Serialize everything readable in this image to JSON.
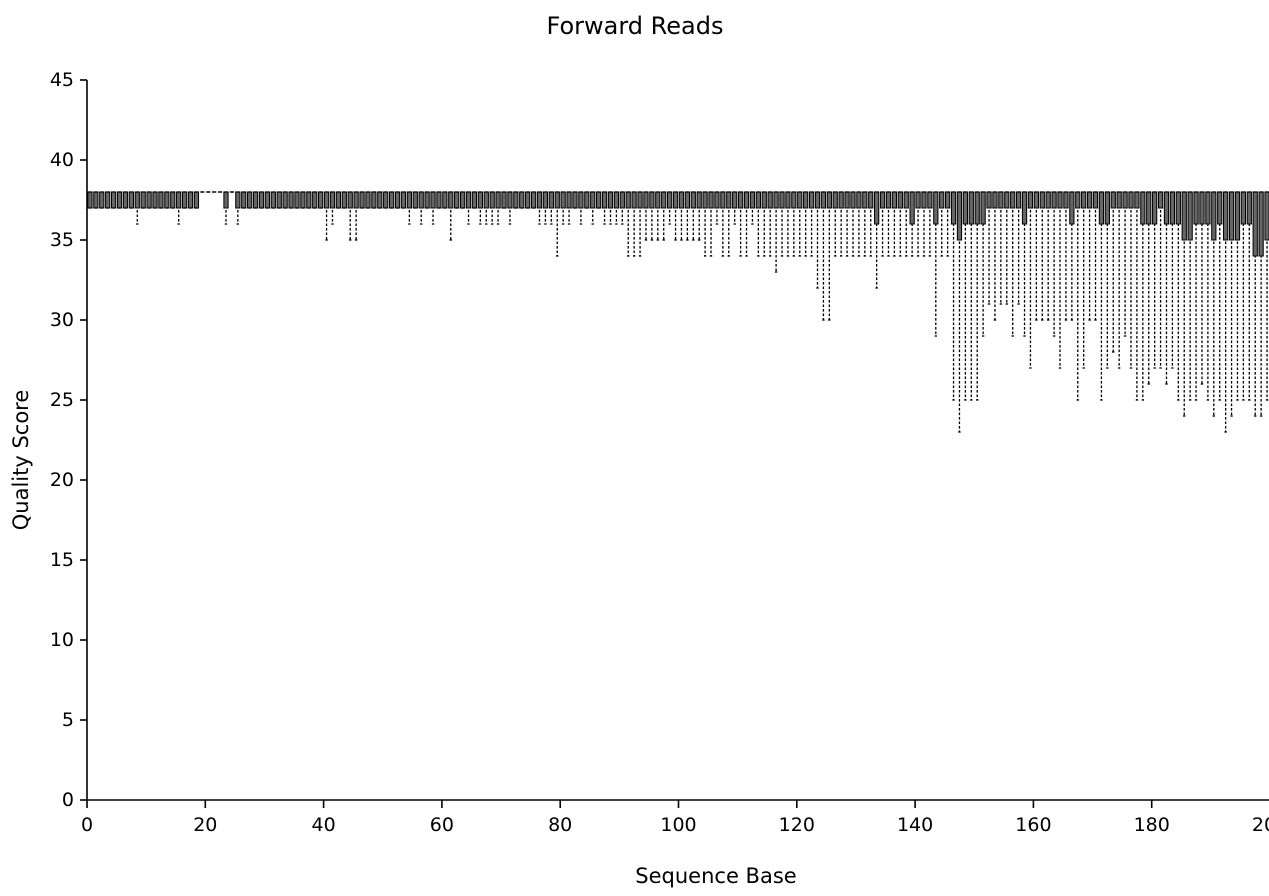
{
  "chart_data": {
    "type": "box",
    "title": "Forward Reads",
    "xlabel": "Sequence Base",
    "ylabel": "Quality Score",
    "xlim": [
      0,
      200
    ],
    "ylim": [
      0,
      45
    ],
    "x_ticks": [
      "0",
      "20",
      "40",
      "60",
      "80",
      "100",
      "120",
      "140",
      "160",
      "180",
      "200"
    ],
    "y_ticks": [
      "0",
      "5",
      "10",
      "15",
      "20",
      "25",
      "30",
      "35",
      "40",
      "45"
    ],
    "grid": false,
    "legend": "none",
    "series": [
      {
        "x": [
          1,
          2,
          3,
          4,
          5,
          6,
          7,
          8,
          9,
          10,
          11,
          12,
          13,
          14,
          15,
          16,
          17,
          18,
          19,
          20,
          21,
          22,
          23,
          24,
          25,
          26,
          27,
          28,
          29,
          30,
          31,
          32,
          33,
          34,
          35,
          36,
          37,
          38,
          39,
          40,
          41,
          42,
          43,
          44,
          45,
          46,
          47,
          48,
          49,
          50,
          51,
          52,
          53,
          54,
          55,
          56,
          57,
          58,
          59,
          60,
          61,
          62,
          63,
          64,
          65,
          66,
          67,
          68,
          69,
          70,
          71,
          72,
          73,
          74,
          75,
          76,
          77,
          78,
          79,
          80,
          81,
          82,
          83,
          84,
          85,
          86,
          87,
          88,
          89,
          90,
          91,
          92,
          93,
          94,
          95,
          96,
          97,
          98,
          99,
          100,
          101,
          102,
          103,
          104,
          105,
          106,
          107,
          108,
          109,
          110,
          111,
          112,
          113,
          114,
          115,
          116,
          117,
          118,
          119,
          120,
          121,
          122,
          123,
          124,
          125,
          126,
          127,
          128,
          129,
          130,
          131,
          132,
          133,
          134,
          135,
          136,
          137,
          138,
          139,
          140,
          141,
          142,
          143,
          144,
          145,
          146,
          147,
          148,
          149,
          150,
          151,
          152,
          153,
          154,
          155,
          156,
          157,
          158,
          159,
          160,
          161,
          162,
          163,
          164,
          165,
          166,
          167,
          168,
          169,
          170,
          171,
          172,
          173,
          174,
          175,
          176,
          177,
          178,
          179,
          180,
          181,
          182,
          183,
          184,
          185,
          186,
          187,
          188,
          189,
          190,
          191,
          192,
          193,
          194,
          195,
          196,
          197,
          198,
          199,
          200
        ],
        "min": [
          37,
          37,
          37,
          37,
          37,
          37,
          37,
          37,
          36,
          37,
          37,
          37,
          37,
          37,
          37,
          36,
          37,
          37,
          37,
          38,
          38,
          38,
          38,
          36,
          38,
          36,
          37,
          37,
          37,
          37,
          37,
          37,
          37,
          37,
          37,
          37,
          37,
          37,
          37,
          37,
          35,
          36,
          37,
          37,
          35,
          35,
          37,
          37,
          37,
          37,
          37,
          37,
          37,
          37,
          36,
          37,
          36,
          37,
          36,
          37,
          37,
          35,
          37,
          37,
          36,
          37,
          36,
          36,
          36,
          36,
          37,
          36,
          37,
          37,
          37,
          37,
          36,
          36,
          36,
          34,
          36,
          36,
          37,
          36,
          37,
          36,
          37,
          36,
          36,
          36,
          36,
          34,
          34,
          34,
          35,
          35,
          35,
          35,
          36,
          35,
          35,
          35,
          35,
          35,
          34,
          34,
          36,
          34,
          34,
          36,
          34,
          34,
          36,
          34,
          34,
          34,
          33,
          34,
          34,
          34,
          34,
          34,
          34,
          32,
          30,
          30,
          34,
          34,
          34,
          34,
          34,
          34,
          34,
          32,
          34,
          34,
          34,
          34,
          34,
          34,
          34,
          34,
          34,
          29,
          34,
          34,
          25,
          23,
          25,
          25,
          25,
          29,
          31,
          30,
          31,
          31,
          29,
          31,
          29,
          27,
          30,
          30,
          30,
          29,
          27,
          30,
          30,
          25,
          27,
          30,
          30,
          25,
          27,
          28,
          27,
          29,
          27,
          25,
          25,
          26,
          27,
          27,
          26,
          27,
          25,
          24,
          25,
          25,
          26,
          25,
          24,
          25,
          23,
          24,
          25,
          25,
          25,
          24,
          24,
          25
        ],
        "q1": [
          37,
          37,
          37,
          37,
          37,
          37,
          37,
          37,
          37,
          37,
          37,
          37,
          37,
          37,
          37,
          37,
          37,
          37,
          37,
          38,
          38,
          38,
          38,
          37,
          38,
          37,
          37,
          37,
          37,
          37,
          37,
          37,
          37,
          37,
          37,
          37,
          37,
          37,
          37,
          37,
          37,
          37,
          37,
          37,
          37,
          37,
          37,
          37,
          37,
          37,
          37,
          37,
          37,
          37,
          37,
          37,
          37,
          37,
          37,
          37,
          37,
          37,
          37,
          37,
          37,
          37,
          37,
          37,
          37,
          37,
          37,
          37,
          37,
          37,
          37,
          37,
          37,
          37,
          37,
          37,
          37,
          37,
          37,
          37,
          37,
          37,
          37,
          37,
          37,
          37,
          37,
          37,
          37,
          37,
          37,
          37,
          37,
          37,
          37,
          37,
          37,
          37,
          37,
          37,
          37,
          37,
          37,
          37,
          37,
          37,
          37,
          37,
          37,
          37,
          37,
          37,
          37,
          37,
          37,
          37,
          37,
          37,
          37,
          37,
          37,
          37,
          37,
          37,
          37,
          37,
          37,
          37,
          37,
          36,
          37,
          37,
          37,
          37,
          37,
          36,
          37,
          37,
          37,
          36,
          37,
          37,
          36,
          35,
          36,
          36,
          36,
          36,
          37,
          37,
          37,
          37,
          37,
          37,
          36,
          37,
          37,
          37,
          37,
          37,
          37,
          37,
          36,
          37,
          37,
          37,
          37,
          36,
          36,
          37,
          37,
          37,
          37,
          37,
          36,
          36,
          36,
          37,
          36,
          36,
          36,
          35,
          35,
          36,
          36,
          36,
          35,
          36,
          35,
          35,
          35,
          36,
          36,
          34,
          34,
          35
        ],
        "median": [
          38,
          38,
          38,
          38,
          38,
          38,
          38,
          38,
          38,
          38,
          38,
          38,
          38,
          38,
          38,
          38,
          38,
          38,
          38,
          38,
          38,
          38,
          38,
          38,
          38,
          38,
          38,
          38,
          38,
          38,
          38,
          38,
          38,
          38,
          38,
          38,
          38,
          38,
          38,
          38,
          38,
          38,
          38,
          38,
          38,
          38,
          38,
          38,
          38,
          38,
          38,
          38,
          38,
          38,
          38,
          38,
          38,
          38,
          38,
          38,
          38,
          38,
          38,
          38,
          38,
          38,
          38,
          38,
          38,
          38,
          38,
          38,
          38,
          38,
          38,
          38,
          38,
          38,
          38,
          38,
          38,
          38,
          38,
          38,
          38,
          38,
          38,
          38,
          38,
          38,
          38,
          38,
          38,
          38,
          38,
          38,
          38,
          38,
          38,
          38,
          38,
          38,
          38,
          38,
          38,
          38,
          38,
          38,
          38,
          38,
          38,
          38,
          38,
          38,
          38,
          38,
          38,
          38,
          38,
          38,
          38,
          38,
          38,
          38,
          38,
          38,
          38,
          38,
          38,
          38,
          38,
          38,
          38,
          38,
          38,
          38,
          38,
          38,
          38,
          38,
          38,
          38,
          38,
          38,
          38,
          38,
          38,
          38,
          38,
          38,
          38,
          38,
          38,
          38,
          38,
          38,
          38,
          38,
          38,
          38,
          38,
          38,
          38,
          38,
          38,
          38,
          38,
          38,
          38,
          38,
          38,
          38,
          38,
          38,
          38,
          38,
          38,
          38,
          38,
          38,
          38,
          38,
          38,
          38,
          38,
          38,
          38,
          38,
          38,
          38,
          38,
          38,
          38,
          38,
          38,
          38,
          38,
          38,
          38,
          38
        ],
        "q3": [
          38,
          38,
          38,
          38,
          38,
          38,
          38,
          38,
          38,
          38,
          38,
          38,
          38,
          38,
          38,
          38,
          38,
          38,
          38,
          38,
          38,
          38,
          38,
          38,
          38,
          38,
          38,
          38,
          38,
          38,
          38,
          38,
          38,
          38,
          38,
          38,
          38,
          38,
          38,
          38,
          38,
          38,
          38,
          38,
          38,
          38,
          38,
          38,
          38,
          38,
          38,
          38,
          38,
          38,
          38,
          38,
          38,
          38,
          38,
          38,
          38,
          38,
          38,
          38,
          38,
          38,
          38,
          38,
          38,
          38,
          38,
          38,
          38,
          38,
          38,
          38,
          38,
          38,
          38,
          38,
          38,
          38,
          38,
          38,
          38,
          38,
          38,
          38,
          38,
          38,
          38,
          38,
          38,
          38,
          38,
          38,
          38,
          38,
          38,
          38,
          38,
          38,
          38,
          38,
          38,
          38,
          38,
          38,
          38,
          38,
          38,
          38,
          38,
          38,
          38,
          38,
          38,
          38,
          38,
          38,
          38,
          38,
          38,
          38,
          38,
          38,
          38,
          38,
          38,
          38,
          38,
          38,
          38,
          38,
          38,
          38,
          38,
          38,
          38,
          38,
          38,
          38,
          38,
          38,
          38,
          38,
          38,
          38,
          38,
          38,
          38,
          38,
          38,
          38,
          38,
          38,
          38,
          38,
          38,
          38,
          38,
          38,
          38,
          38,
          38,
          38,
          38,
          38,
          38,
          38,
          38,
          38,
          38,
          38,
          38,
          38,
          38,
          38,
          38,
          38,
          38,
          38,
          38,
          38,
          38,
          38,
          38,
          38,
          38,
          38,
          38,
          38,
          38,
          38,
          38,
          38,
          38,
          38,
          38,
          38
        ],
        "max": [
          38,
          38,
          38,
          38,
          38,
          38,
          38,
          38,
          38,
          38,
          38,
          38,
          38,
          38,
          38,
          38,
          38,
          38,
          38,
          38,
          38,
          38,
          38,
          38,
          38,
          38,
          38,
          38,
          38,
          38,
          38,
          38,
          38,
          38,
          38,
          38,
          38,
          38,
          38,
          38,
          38,
          38,
          38,
          38,
          38,
          38,
          38,
          38,
          38,
          38,
          38,
          38,
          38,
          38,
          38,
          38,
          38,
          38,
          38,
          38,
          38,
          38,
          38,
          38,
          38,
          38,
          38,
          38,
          38,
          38,
          38,
          38,
          38,
          38,
          38,
          38,
          38,
          38,
          38,
          38,
          38,
          38,
          38,
          38,
          38,
          38,
          38,
          38,
          38,
          38,
          38,
          38,
          38,
          38,
          38,
          38,
          38,
          38,
          38,
          38,
          38,
          38,
          38,
          38,
          38,
          38,
          38,
          38,
          38,
          38,
          38,
          38,
          38,
          38,
          38,
          38,
          38,
          38,
          38,
          38,
          38,
          38,
          38,
          38,
          38,
          38,
          38,
          38,
          38,
          38,
          38,
          38,
          38,
          38,
          38,
          38,
          38,
          38,
          38,
          38,
          38,
          38,
          38,
          38,
          38,
          38,
          38,
          38,
          38,
          38,
          38,
          38,
          38,
          38,
          38,
          38,
          38,
          38,
          38,
          38,
          38,
          38,
          38,
          38,
          38,
          38,
          38,
          38,
          38,
          38,
          38,
          38,
          38,
          38,
          38,
          38,
          38,
          38,
          38,
          38,
          38,
          38,
          38,
          38,
          38,
          38,
          38,
          38,
          38,
          38,
          38,
          38,
          38,
          38,
          38,
          38,
          38,
          38,
          38,
          38
        ]
      }
    ]
  }
}
